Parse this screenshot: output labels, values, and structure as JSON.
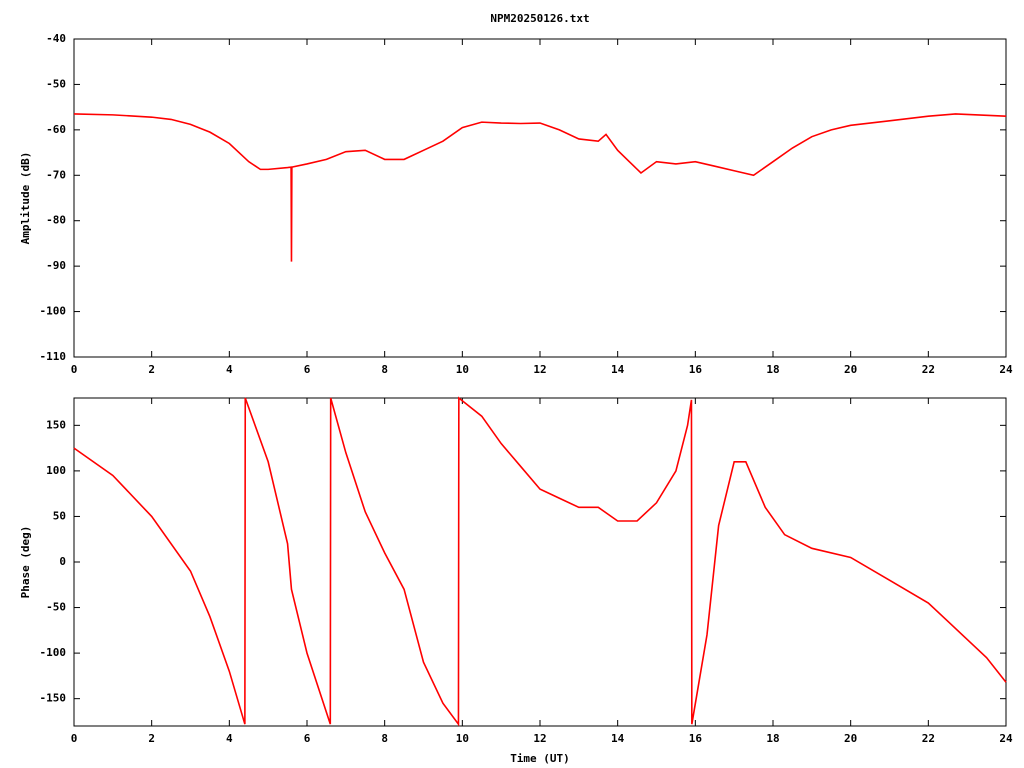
{
  "chart_data": [
    {
      "type": "line",
      "title": "NPM20250126.txt",
      "y_label": "Amplitude (dB)",
      "color": "#ff0000",
      "x": [
        0,
        1,
        2,
        2.5,
        3,
        3.5,
        4,
        4.5,
        4.8,
        5,
        5.5,
        5.59,
        5.6,
        5.61,
        6,
        6.5,
        7,
        7.5,
        8,
        8.5,
        9,
        9.5,
        10,
        10.5,
        11,
        11.5,
        12,
        12.5,
        13,
        13.5,
        13.7,
        14,
        14.3,
        14.6,
        15,
        15.5,
        16,
        16.5,
        17,
        17.5,
        18,
        18.5,
        19,
        19.5,
        20,
        21,
        22,
        22.7,
        23.5,
        24
      ],
      "values": [
        -56.5,
        -56.7,
        -57.2,
        -57.7,
        -58.8,
        -60.5,
        -63,
        -67,
        -68.7,
        -68.7,
        -68.3,
        -68.2,
        -89,
        -68.2,
        -67.5,
        -66.5,
        -64.8,
        -64.5,
        -66.5,
        -66.5,
        -64.5,
        -62.5,
        -59.5,
        -58.3,
        -58.5,
        -58.6,
        -58.5,
        -60,
        -62,
        -62.5,
        -61,
        -64.5,
        -67,
        -69.5,
        -67,
        -67.5,
        -67,
        -68,
        -69,
        -70,
        -67,
        -64,
        -61.5,
        -60,
        -59,
        -58,
        -57,
        -56.5,
        -56.8,
        -57
      ],
      "xlim": [
        0,
        24
      ],
      "xticks": [
        0,
        2,
        4,
        6,
        8,
        10,
        12,
        14,
        16,
        18,
        20,
        22,
        24
      ],
      "ylim": [
        -110,
        -40
      ],
      "yticks": [
        -40,
        -50,
        -60,
        -70,
        -80,
        -90,
        -100,
        -110
      ]
    },
    {
      "type": "line",
      "x_label": "Time (UT)",
      "y_label": "Phase (deg)",
      "color": "#ff0000",
      "x": [
        0,
        1,
        2,
        3,
        3.5,
        4,
        4.4,
        4.41,
        5,
        5.5,
        5.6,
        6,
        6.6,
        6.61,
        7,
        7.5,
        8,
        8.5,
        9,
        9.5,
        9.9,
        9.91,
        10.5,
        11,
        11.5,
        12,
        12.5,
        13,
        13.5,
        14,
        14.5,
        15,
        15.5,
        15.8,
        15.9,
        15.91,
        16.3,
        16.6,
        17,
        17.3,
        17.8,
        18.3,
        19,
        20,
        21,
        22,
        22.5,
        23,
        23.5,
        24
      ],
      "values": [
        125,
        95,
        50,
        -10,
        -60,
        -120,
        -178,
        180,
        110,
        20,
        -30,
        -100,
        -178,
        180,
        120,
        55,
        10,
        -30,
        -110,
        -155,
        -178,
        180,
        160,
        130,
        105,
        80,
        70,
        60,
        60,
        45,
        45,
        65,
        100,
        150,
        178,
        -178,
        -80,
        40,
        110,
        110,
        60,
        30,
        15,
        5,
        -20,
        -45,
        -65,
        -85,
        -105,
        -132
      ],
      "xlim": [
        0,
        24
      ],
      "xticks": [
        0,
        2,
        4,
        6,
        8,
        10,
        12,
        14,
        16,
        18,
        20,
        22,
        24
      ],
      "ylim": [
        -180,
        180
      ],
      "yticks": [
        150,
        100,
        50,
        0,
        -50,
        -100,
        -150
      ]
    }
  ]
}
